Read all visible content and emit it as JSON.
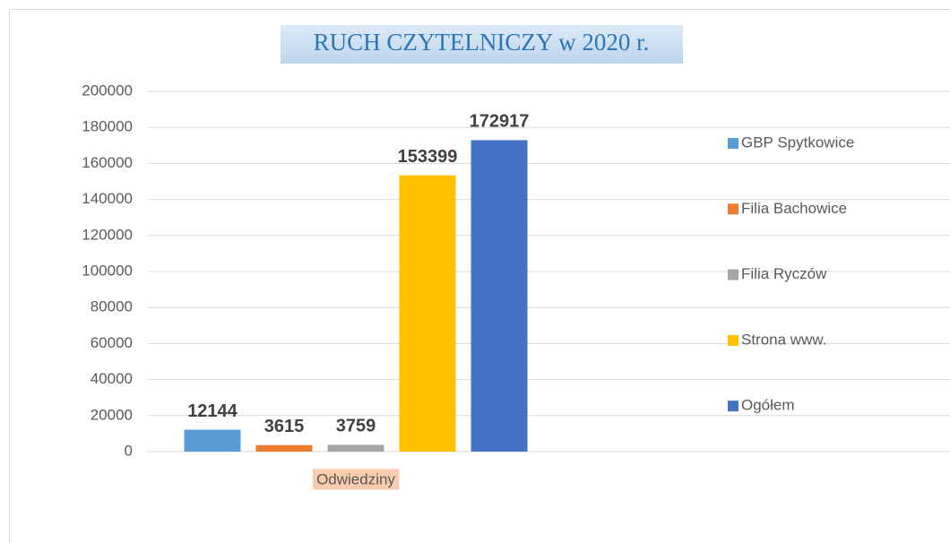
{
  "chart_data": {
    "type": "bar",
    "title": "RUCH CZYTELNICZY w 2020 r.",
    "categories": [
      "Odwiedziny"
    ],
    "series": [
      {
        "name": "GBP Spytkowice",
        "color": "#5b9bd5",
        "values": [
          12144
        ]
      },
      {
        "name": "Filia Bachowice",
        "color": "#ed7d31",
        "values": [
          3615
        ]
      },
      {
        "name": "Filia Ryczów",
        "color": "#a5a5a5",
        "values": [
          3759
        ]
      },
      {
        "name": "Strona www.",
        "color": "#ffc000",
        "values": [
          153399
        ]
      },
      {
        "name": "Ogółem",
        "color": "#4472c4",
        "values": [
          172917
        ]
      }
    ],
    "ylim": [
      0,
      200000
    ],
    "yticks": [
      0,
      20000,
      40000,
      60000,
      80000,
      100000,
      120000,
      140000,
      160000,
      180000,
      200000
    ],
    "grid": true,
    "legend": "right",
    "data_labels": true
  }
}
